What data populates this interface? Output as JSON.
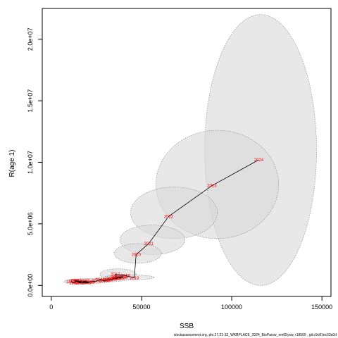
{
  "chart_data": {
    "type": "scatter",
    "xlabel": "SSB",
    "ylabel": "R(age 1)",
    "xlim": [
      -5000,
      155000
    ],
    "ylim": [
      -900000,
      22500000
    ],
    "xticks": [
      {
        "value": 0,
        "label": "0"
      },
      {
        "value": 50000,
        "label": "50000"
      },
      {
        "value": 100000,
        "label": "100000"
      },
      {
        "value": 150000,
        "label": "150000"
      }
    ],
    "yticks": [
      {
        "value": 0,
        "label": "0.0e+00"
      },
      {
        "value": 5000000,
        "label": "5.0e+06"
      },
      {
        "value": 10000000,
        "label": "1.0e+07"
      },
      {
        "value": 15000000,
        "label": "1.5e+07"
      },
      {
        "value": 20000000,
        "label": "2.0e+07"
      }
    ],
    "points": [
      {
        "year": "1990",
        "ssb": 11000,
        "r": 300000
      },
      {
        "year": "1991",
        "ssb": 12500,
        "r": 200000
      },
      {
        "year": "1992",
        "ssb": 14000,
        "r": 350000
      },
      {
        "year": "1993",
        "ssb": 15500,
        "r": 250000
      },
      {
        "year": "1994",
        "ssb": 17000,
        "r": 300000
      },
      {
        "year": "1995",
        "ssb": 13000,
        "r": 400000
      },
      {
        "year": "1996",
        "ssb": 16000,
        "r": 200000
      },
      {
        "year": "1997",
        "ssb": 18500,
        "r": 350000
      },
      {
        "year": "1998",
        "ssb": 21000,
        "r": 250000
      },
      {
        "year": "1999",
        "ssb": 14500,
        "r": 300000
      },
      {
        "year": "2000",
        "ssb": 19500,
        "r": 200000
      },
      {
        "year": "2001",
        "ssb": 22000,
        "r": 300000
      },
      {
        "year": "2002",
        "ssb": 25000,
        "r": 350000
      },
      {
        "year": "2003",
        "ssb": 27000,
        "r": 450000
      },
      {
        "year": "2004",
        "ssb": 29000,
        "r": 400000
      },
      {
        "year": "2005",
        "ssb": 30000,
        "r": 400000
      },
      {
        "year": "2006",
        "ssb": 31000,
        "r": 450000
      },
      {
        "year": "2007",
        "ssb": 32000,
        "r": 450000
      },
      {
        "year": "2008",
        "ssb": 33000,
        "r": 500000
      },
      {
        "year": "2009",
        "ssb": 34000,
        "r": 500000
      },
      {
        "year": "2010",
        "ssb": 35000,
        "r": 600000
      },
      {
        "year": "2011",
        "ssb": 36000,
        "r": 550000
      },
      {
        "year": "2012",
        "ssb": 37000,
        "r": 650000
      },
      {
        "year": "2013",
        "ssb": 38000,
        "r": 600000
      },
      {
        "year": "2014",
        "ssb": 39000,
        "r": 650000
      },
      {
        "year": "2015",
        "ssb": 40000,
        "r": 700000
      },
      {
        "year": "2016",
        "ssb": 36000,
        "r": 650000
      },
      {
        "year": "2017",
        "ssb": 35500,
        "r": 900000
      },
      {
        "year": "2018",
        "ssb": 41000,
        "r": 800000
      },
      {
        "year": "2019",
        "ssb": 46000,
        "r": 600000
      },
      {
        "year": "2020",
        "ssb": 47000,
        "r": 2500000
      },
      {
        "year": "2021",
        "ssb": 54000,
        "r": 3400000
      },
      {
        "year": "2022",
        "ssb": 65000,
        "r": 5600000
      },
      {
        "year": "2023",
        "ssb": 89000,
        "r": 8100000
      },
      {
        "year": "2024",
        "ssb": 115000,
        "r": 10200000
      }
    ],
    "labeled_years": [
      "2017",
      "2019",
      "2020",
      "2021",
      "2022",
      "2023",
      "2024"
    ],
    "ellipses": [
      {
        "year": "2024",
        "cx": 116000,
        "cy": 11000000,
        "rx": 31000,
        "ry": 11000000
      },
      {
        "year": "2023",
        "cx": 92000,
        "cy": 8200000,
        "rx": 34000,
        "ry": 4400000
      },
      {
        "year": "2022",
        "cx": 68000,
        "cy": 5900000,
        "rx": 24000,
        "ry": 2100000
      },
      {
        "year": "2021",
        "cx": 56000,
        "cy": 3700000,
        "rx": 18000,
        "ry": 1200000
      },
      {
        "year": "2020",
        "cx": 48000,
        "cy": 2600000,
        "rx": 13000,
        "ry": 800000
      },
      {
        "year": "2017",
        "cx": 37000,
        "cy": 900000,
        "rx": 10000,
        "ry": 450000
      },
      {
        "year": "2019",
        "cx": 43000,
        "cy": 650000,
        "rx": 14000,
        "ry": 200000
      },
      {
        "year": "2012",
        "cx": 33000,
        "cy": 500000,
        "rx": 9000,
        "ry": 200000
      },
      {
        "year": "2000",
        "cx": 20000,
        "cy": 350000,
        "rx": 12000,
        "ry": 200000
      },
      {
        "year": "1992",
        "cx": 14000,
        "cy": 300000,
        "rx": 7000,
        "ry": 180000
      }
    ],
    "colors": {
      "ellipse_fill": "#d9d9d9",
      "ellipse_stroke": "#808080",
      "line": "#000000",
      "label": "#ff0000"
    }
  },
  "footer": "stockassessment.org, ple.27.21-32_WKBPLACE_2024_BioParsw_nm05ysw, r18509 , git:c9c81ec53a0d"
}
